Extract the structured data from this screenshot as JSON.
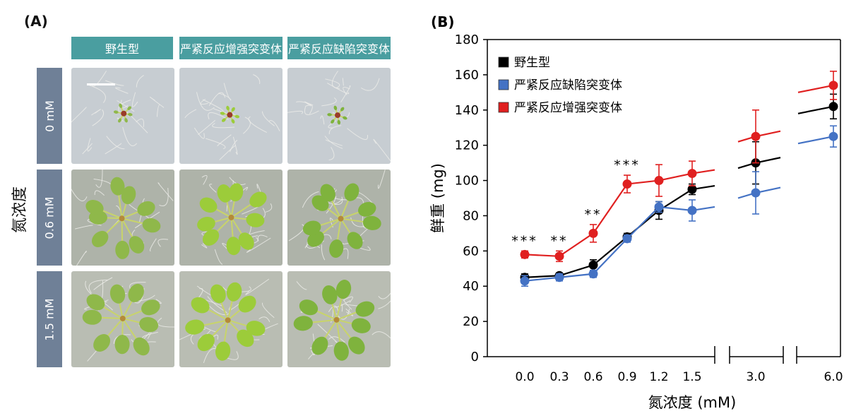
{
  "panel_a": {
    "label": "(A)",
    "y_title": "氮浓度",
    "columns": [
      "野生型",
      "严紧反应增强突变体",
      "严紧反应缺陷突变体"
    ],
    "rows": [
      "0 mM",
      "0.6 mM",
      "1.5 mM"
    ]
  },
  "panel_b": {
    "label": "(B)"
  },
  "chart_data": {
    "type": "line",
    "xlabel": "氮浓度 (mM)",
    "ylabel": "鲜重 (mg)",
    "ylim": [
      0,
      180
    ],
    "yticks": [
      0,
      20,
      40,
      60,
      80,
      100,
      120,
      140,
      160,
      180
    ],
    "x": [
      "0.0",
      "0.3",
      "0.6",
      "0.9",
      "1.2",
      "1.5",
      "3.0",
      "6.0"
    ],
    "axis_breaks": [
      "between 1.5 and 3.0",
      "between 3.0 and 6.0"
    ],
    "legend_position": "top-left",
    "series": [
      {
        "name": "野生型",
        "color": "#000000",
        "values": [
          45,
          46,
          52,
          68,
          83,
          95,
          110,
          142
        ],
        "errors": [
          2,
          1.5,
          3,
          2,
          5,
          3,
          12,
          7
        ]
      },
      {
        "name": "严紧反应缺陷突变体",
        "color": "#4472c4",
        "values": [
          43,
          45,
          47,
          67,
          85,
          83,
          93,
          125
        ],
        "errors": [
          3,
          2,
          2,
          2,
          3,
          6,
          12,
          6
        ]
      },
      {
        "name": "严紧反应增强突变体",
        "color": "#e02020",
        "values": [
          58,
          57,
          70,
          98,
          100,
          104,
          125,
          154
        ],
        "errors": [
          2,
          3,
          5,
          5,
          9,
          7,
          15,
          8
        ]
      }
    ],
    "annotations": [
      {
        "x": "0.0",
        "text": "***"
      },
      {
        "x": "0.3",
        "text": "**"
      },
      {
        "x": "0.6",
        "text": "**"
      },
      {
        "x": "0.9",
        "text": "***"
      }
    ]
  }
}
